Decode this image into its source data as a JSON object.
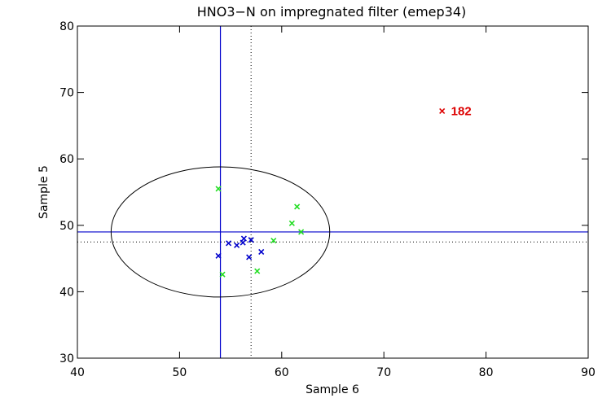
{
  "chart_data": {
    "type": "scatter",
    "title": "HNO3−N on impregnated filter (emep34)",
    "xlabel": "Sample 6",
    "ylabel": "Sample 5",
    "xlim": [
      40,
      90
    ],
    "ylim": [
      30,
      80
    ],
    "xticks": [
      "40",
      "50",
      "60",
      "70",
      "80",
      "90"
    ],
    "yticks": [
      "30",
      "40",
      "50",
      "60",
      "70",
      "80"
    ],
    "grid": false,
    "reference_lines": {
      "vertical_solid": 54.0,
      "horizontal_solid": 49.0,
      "vertical_dotted": 57.0,
      "horizontal_dotted": 47.5
    },
    "ellipse": {
      "center_x": 54.0,
      "center_y": 49.0,
      "radius_x": 10.7,
      "radius_y": 9.8
    },
    "series": [
      {
        "color": "#0000cc",
        "points": [
          [
            53.8,
            45.4
          ],
          [
            54.8,
            47.3
          ],
          [
            55.6,
            47.0
          ],
          [
            56.2,
            47.4
          ],
          [
            56.3,
            48.0
          ],
          [
            57.0,
            47.8
          ],
          [
            56.8,
            45.2
          ],
          [
            58.0,
            46.0
          ]
        ]
      },
      {
        "color": "#22dd22",
        "points": [
          [
            53.8,
            55.5
          ],
          [
            54.2,
            42.6
          ],
          [
            57.6,
            43.1
          ],
          [
            59.2,
            47.7
          ],
          [
            61.0,
            50.3
          ],
          [
            61.5,
            52.8
          ],
          [
            61.9,
            49.0
          ]
        ]
      },
      {
        "color": "#dd0000",
        "points": [
          [
            75.7,
            67.2
          ]
        ]
      }
    ],
    "annotations": [
      {
        "text": "182",
        "color": "#dd0000",
        "x": 75.7,
        "y": 67.2
      }
    ]
  }
}
